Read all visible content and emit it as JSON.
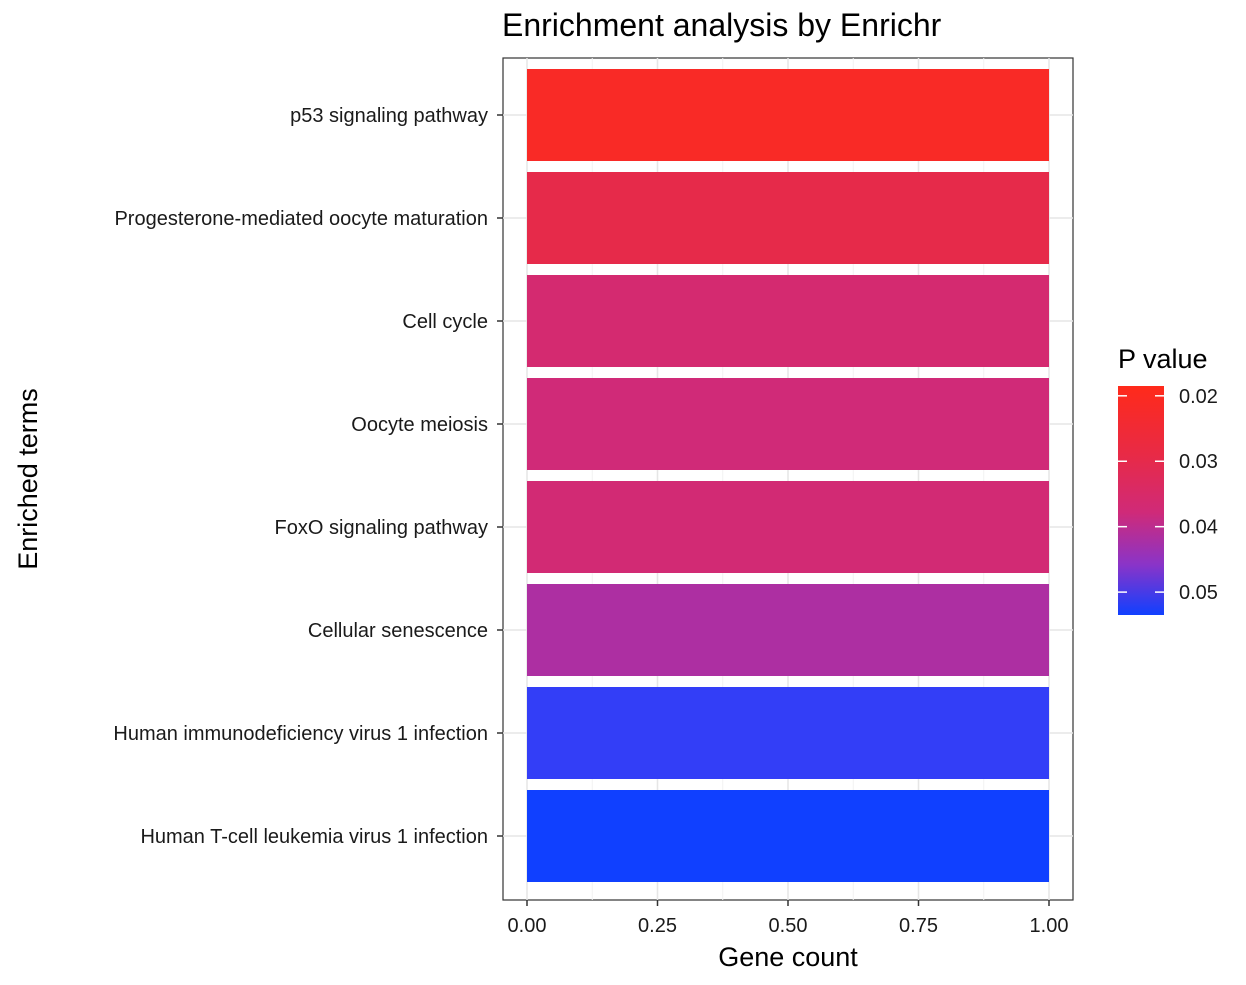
{
  "chart_data": {
    "type": "bar",
    "orientation": "horizontal",
    "title": "Enrichment analysis by Enrichr",
    "xlabel": "Gene count",
    "ylabel": "Enriched terms",
    "xlim": [
      0,
      1.0
    ],
    "xticks": [
      0.0,
      0.25,
      0.5,
      0.75,
      1.0
    ],
    "xtick_labels": [
      "0.00",
      "0.25",
      "0.50",
      "0.75",
      "1.00"
    ],
    "grid": true,
    "categories": [
      "p53 signaling pathway",
      "Progesterone-mediated oocyte maturation",
      "Cell cycle",
      "Oocyte meiosis",
      "FoxO signaling pathway",
      "Cellular senescence",
      "Human immunodeficiency virus 1 infection",
      "Human T-cell leukemia virus 1 infection"
    ],
    "values": [
      1,
      1,
      1,
      1,
      1,
      1,
      1,
      1
    ],
    "p_values": [
      0.0205,
      0.0265,
      0.031,
      0.032,
      0.0315,
      0.0365,
      0.0505,
      0.057
    ],
    "legend": {
      "title": "P value",
      "position": "right",
      "ticks": [
        0.02,
        0.03,
        0.04,
        0.05
      ],
      "tick_labels": [
        "0.02",
        "0.03",
        "0.04",
        "0.05"
      ],
      "range": [
        0.0185,
        0.0535
      ],
      "low_color": "#ff2a1a",
      "high_color": "#1040ff"
    }
  }
}
